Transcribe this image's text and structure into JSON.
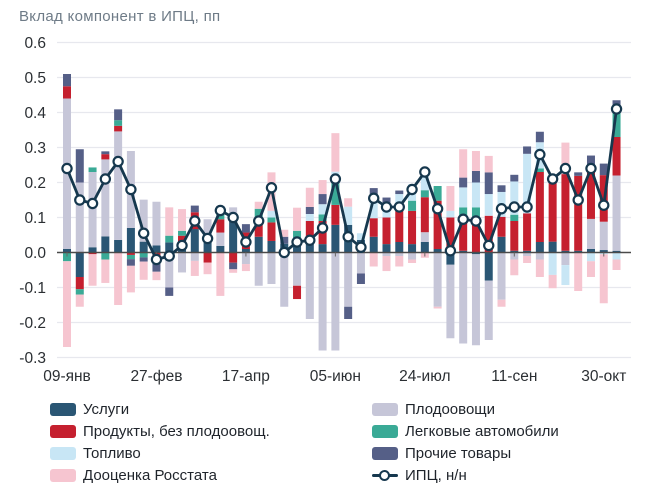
{
  "title": "Вклад компонент в ИПЦ, пп",
  "colors": {
    "ipc_line": "#16384e",
    "grid": "#e7e8ee",
    "zero_axis": "#4a4a4a",
    "title_text": "#6e7b87",
    "axis_text": "#2b2f33"
  },
  "chart_data": {
    "type": "bar",
    "stacked": true,
    "title": "Вклад компонент в ИПЦ, пп",
    "xlabel": "",
    "ylabel": "",
    "ylim": [
      -0.3,
      0.6
    ],
    "grid": true,
    "legend_position": "bottom",
    "n_bars": 44,
    "x_tick_labels": [
      "09-янв",
      "27-фев",
      "17-апр",
      "05-июн",
      "24-июл",
      "11-сен",
      "30-окт"
    ],
    "x_tick_indices": [
      0,
      7,
      14,
      21,
      28,
      35,
      42
    ],
    "y_ticks": [
      0.6,
      0.5,
      0.4,
      0.3,
      0.2,
      0.1,
      0.0,
      -0.1,
      -0.2,
      -0.3
    ],
    "series": [
      {
        "key": "uslugi",
        "name": "Услуги",
        "color": "#2a5674",
        "values": [
          0.01,
          -0.07,
          0.015,
          0.046,
          0.036,
          0.07,
          0.031,
          0.02,
          0.029,
          0.019,
          0.067,
          0.043,
          0.019,
          0.1,
          0.01,
          0.045,
          0.033,
          0.025,
          0.043,
          0.025,
          0.024,
          0.079,
          0.079,
          0.036,
          0.045,
          0.024,
          0.03,
          0.024,
          0.03,
          0.01,
          -0.035,
          0.005,
          -0.005,
          -0.08,
          0.045,
          0.005,
          0.005,
          0.03,
          0.031,
          0.005,
          0.005,
          0.01,
          0.007,
          0.005
        ]
      },
      {
        "key": "plodoovoshchi",
        "name": "Плодоовощи",
        "color": "#c6c6d8",
        "values": [
          0.43,
          0.2,
          0.215,
          0.22,
          0.31,
          0.22,
          0.12,
          0.125,
          -0.1,
          -0.057,
          -0.024,
          0.052,
          0.038,
          0.029,
          -0.033,
          -0.095,
          -0.09,
          -0.155,
          -0.095,
          -0.19,
          -0.28,
          -0.28,
          -0.155,
          -0.06,
          0,
          -0.01,
          -0.01,
          -0.02,
          0.028,
          -0.155,
          -0.21,
          -0.26,
          -0.26,
          -0.17,
          -0.135,
          -0.02,
          -0.01,
          -0.02,
          0,
          -0.036,
          0,
          0.086,
          0.081,
          0.215
        ]
      },
      {
        "key": "produkty",
        "name": "Продукты, без плодоовощ.",
        "color": "#c5202f",
        "values": [
          0.035,
          -0.035,
          -0.005,
          0.015,
          0.016,
          -0.007,
          0,
          -0.013,
          0,
          0.029,
          0.048,
          -0.029,
          0.038,
          -0.029,
          0.047,
          0.05,
          0.053,
          0,
          -0.038,
          0.065,
          0.066,
          0.057,
          0,
          0,
          0.053,
          0.076,
          0.089,
          0.095,
          0.1,
          0.138,
          0.1,
          0.095,
          0.1,
          0.105,
          0.057,
          0.085,
          0.107,
          0.2,
          0.172,
          0.219,
          0.214,
          0.133,
          0.133,
          0.11
        ]
      },
      {
        "key": "legkovye",
        "name": "Легковые автомобили",
        "color": "#3aaa96",
        "values": [
          -0.025,
          -0.015,
          0.013,
          -0.02,
          0.016,
          -0.012,
          -0.014,
          -0.015,
          0.019,
          0.014,
          0,
          0,
          0.019,
          0,
          0,
          0.03,
          0.014,
          0,
          0.019,
          0,
          0.019,
          0.081,
          0,
          0,
          0,
          0,
          0,
          0.029,
          0.02,
          0.042,
          0,
          0.029,
          0.029,
          0,
          0,
          0.018,
          0,
          0.01,
          0.019,
          0,
          0,
          0,
          0,
          0.08
        ]
      },
      {
        "key": "toplivo",
        "name": "Топливо",
        "color": "#c8e6f5",
        "values": [
          0,
          0,
          0,
          0,
          0,
          0,
          0,
          0,
          0,
          0,
          0,
          0,
          0,
          0,
          0,
          0,
          0.019,
          0,
          0,
          0.02,
          0.029,
          0.014,
          0.052,
          0.019,
          0.067,
          0.038,
          0.048,
          0.047,
          0.055,
          0,
          0.019,
          0.057,
          0.071,
          0.062,
          0.071,
          0.095,
          0.17,
          0.075,
          -0.064,
          -0.057,
          0,
          -0.025,
          -0.005,
          -0.02
        ]
      },
      {
        "key": "prochie",
        "name": "Прочие товары",
        "color": "#555f87",
        "values": [
          0.035,
          0.095,
          0,
          0.008,
          0.031,
          -0.019,
          -0.012,
          -0.027,
          -0.024,
          0,
          0.019,
          0,
          0.019,
          -0.019,
          0.024,
          0,
          0,
          0.02,
          0,
          0.02,
          0.029,
          0,
          -0.035,
          -0.03,
          0.019,
          0.019,
          0.01,
          0,
          0,
          0,
          0,
          0.028,
          0.033,
          0.062,
          0.019,
          0.019,
          0.021,
          0.03,
          0,
          0,
          0.01,
          0.048,
          0.033,
          0.025
        ]
      },
      {
        "key": "dootsenka",
        "name": "Дооценка Росстата",
        "color": "#f6c5d0",
        "values": [
          -0.245,
          -0.035,
          -0.09,
          -0.067,
          -0.15,
          -0.076,
          -0.052,
          -0.024,
          0.081,
          0.062,
          -0.043,
          -0.033,
          -0.124,
          -0.01,
          -0.02,
          0.02,
          0.11,
          0.02,
          0.066,
          0.055,
          0.04,
          0.11,
          0.024,
          0,
          -0.04,
          -0.043,
          -0.03,
          -0.01,
          -0.015,
          -0.005,
          0.071,
          0.081,
          0.057,
          0.047,
          -0.02,
          -0.045,
          -0.02,
          -0.05,
          -0.038,
          0.09,
          -0.11,
          -0.045,
          -0.14,
          -0.03
        ]
      }
    ],
    "line_series": {
      "key": "ipc",
      "name": "ИПЦ, н/н",
      "color": "#16384e",
      "marker": "circle",
      "values": [
        0.24,
        0.15,
        0.14,
        0.21,
        0.26,
        0.18,
        0.055,
        -0.02,
        -0.01,
        0.02,
        0.09,
        0.04,
        0.12,
        0.1,
        0.03,
        0.09,
        0.185,
        0,
        0.03,
        0.035,
        0.07,
        0.21,
        0.045,
        0.015,
        0.155,
        0.13,
        0.13,
        0.18,
        0.23,
        0.125,
        0.005,
        0.095,
        0.09,
        0.02,
        0.125,
        0.13,
        0.13,
        0.28,
        0.21,
        0.24,
        0.15,
        0.24,
        0.135,
        0.41
      ]
    }
  },
  "legend": {
    "columns": [
      {
        "items": [
          {
            "label": "Услуги",
            "color": "#2a5674",
            "swatch": "box"
          },
          {
            "label": "Продукты, без плодоовощ.",
            "color": "#c5202f",
            "swatch": "box"
          },
          {
            "label": "Топливо",
            "color": "#c8e6f5",
            "swatch": "box"
          },
          {
            "label": "Дооценка Росстата",
            "color": "#f6c5d0",
            "swatch": "box"
          }
        ]
      },
      {
        "items": [
          {
            "label": "Плодоовощи",
            "color": "#c6c6d8",
            "swatch": "box"
          },
          {
            "label": "Легковые автомобили",
            "color": "#3aaa96",
            "swatch": "box"
          },
          {
            "label": "Прочие товары",
            "color": "#555f87",
            "swatch": "box"
          },
          {
            "label": "ИПЦ, н/н",
            "color": "#16384e",
            "swatch": "line-marker"
          }
        ]
      }
    ]
  }
}
